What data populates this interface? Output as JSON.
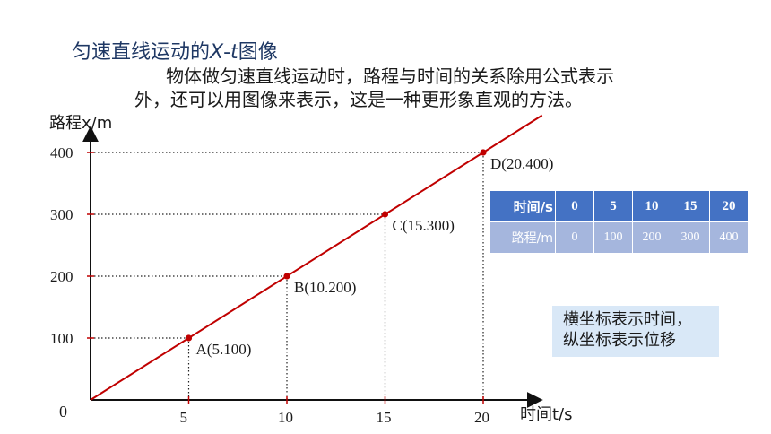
{
  "title": {
    "prefix": "匀速直线运动的",
    "var_x": "X",
    "dash": "-",
    "var_t": "t",
    "suffix": "图像"
  },
  "intro": {
    "line1": "物体做匀速直线运动时，路程与时间的关系除用公式表示",
    "line2": "外，还可以用图像来表示，这是一种更形象直观的方法。"
  },
  "chart_data": {
    "type": "line",
    "xlabel": "时间t/s",
    "ylabel": "路程x/m",
    "origin_label": "0",
    "xlim": [
      0,
      23
    ],
    "ylim": [
      0,
      430
    ],
    "x_ticks": [
      5,
      10,
      15,
      20
    ],
    "y_ticks": [
      100,
      200,
      300,
      400
    ],
    "line_color": "#c00000",
    "guide_style": "dotted",
    "line_end": [
      23,
      460
    ],
    "points": [
      {
        "label": "A(5.100)",
        "x": 5,
        "y": 100
      },
      {
        "label": "B(10.200)",
        "x": 10,
        "y": 200
      },
      {
        "label": "C(15.300)",
        "x": 15,
        "y": 300
      },
      {
        "label": "D(20.400)",
        "x": 20,
        "y": 400
      }
    ]
  },
  "table": {
    "header_time": "时间/s",
    "header_distance": "路程/m",
    "times": [
      "0",
      "5",
      "10",
      "15",
      "20"
    ],
    "distances": [
      "0",
      "100",
      "200",
      "300",
      "400"
    ],
    "header_color": "#4472c4",
    "body_color": "#a5b6dd"
  },
  "note": {
    "line1": "横坐标表示时间，",
    "line2": "纵坐标表示位移"
  }
}
